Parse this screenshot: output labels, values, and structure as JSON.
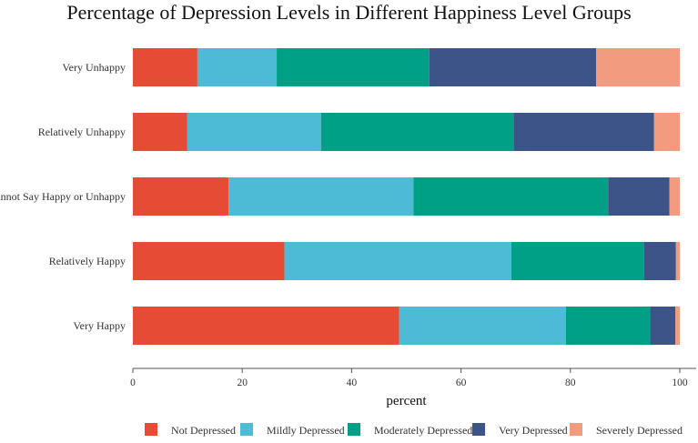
{
  "chart_data": {
    "type": "bar",
    "orientation": "horizontal",
    "stacked": true,
    "title": "Percentage of Depression Levels in Different Happiness Level Groups",
    "xlabel": "percent",
    "ylabel": "",
    "xlim": [
      0,
      100
    ],
    "xticks": [
      0,
      20,
      40,
      60,
      80,
      100
    ],
    "categories": [
      "Very Unhappy",
      "Relatively Unhappy",
      "Cannot Say Happy or Unhappy",
      "Relatively Happy",
      "Very Happy"
    ],
    "series": [
      {
        "name": "Not Depressed",
        "color": "#e64b35",
        "values": [
          11.8,
          9.9,
          17.5,
          27.7,
          48.7
        ]
      },
      {
        "name": "Mildly Depressed",
        "color": "#4dbbd5",
        "values": [
          14.5,
          24.5,
          33.8,
          41.5,
          30.5
        ]
      },
      {
        "name": "Moderately Depressed",
        "color": "#00a087",
        "values": [
          27.9,
          35.2,
          35.6,
          24.3,
          15.4
        ]
      },
      {
        "name": "Very Depressed",
        "color": "#3c5488",
        "values": [
          30.5,
          25.7,
          11.2,
          5.8,
          4.6
        ]
      },
      {
        "name": "Severely Depressed",
        "color": "#f39b7f",
        "values": [
          15.3,
          4.7,
          1.9,
          0.7,
          0.8
        ]
      }
    ],
    "legend_position": "bottom",
    "grid": false
  }
}
